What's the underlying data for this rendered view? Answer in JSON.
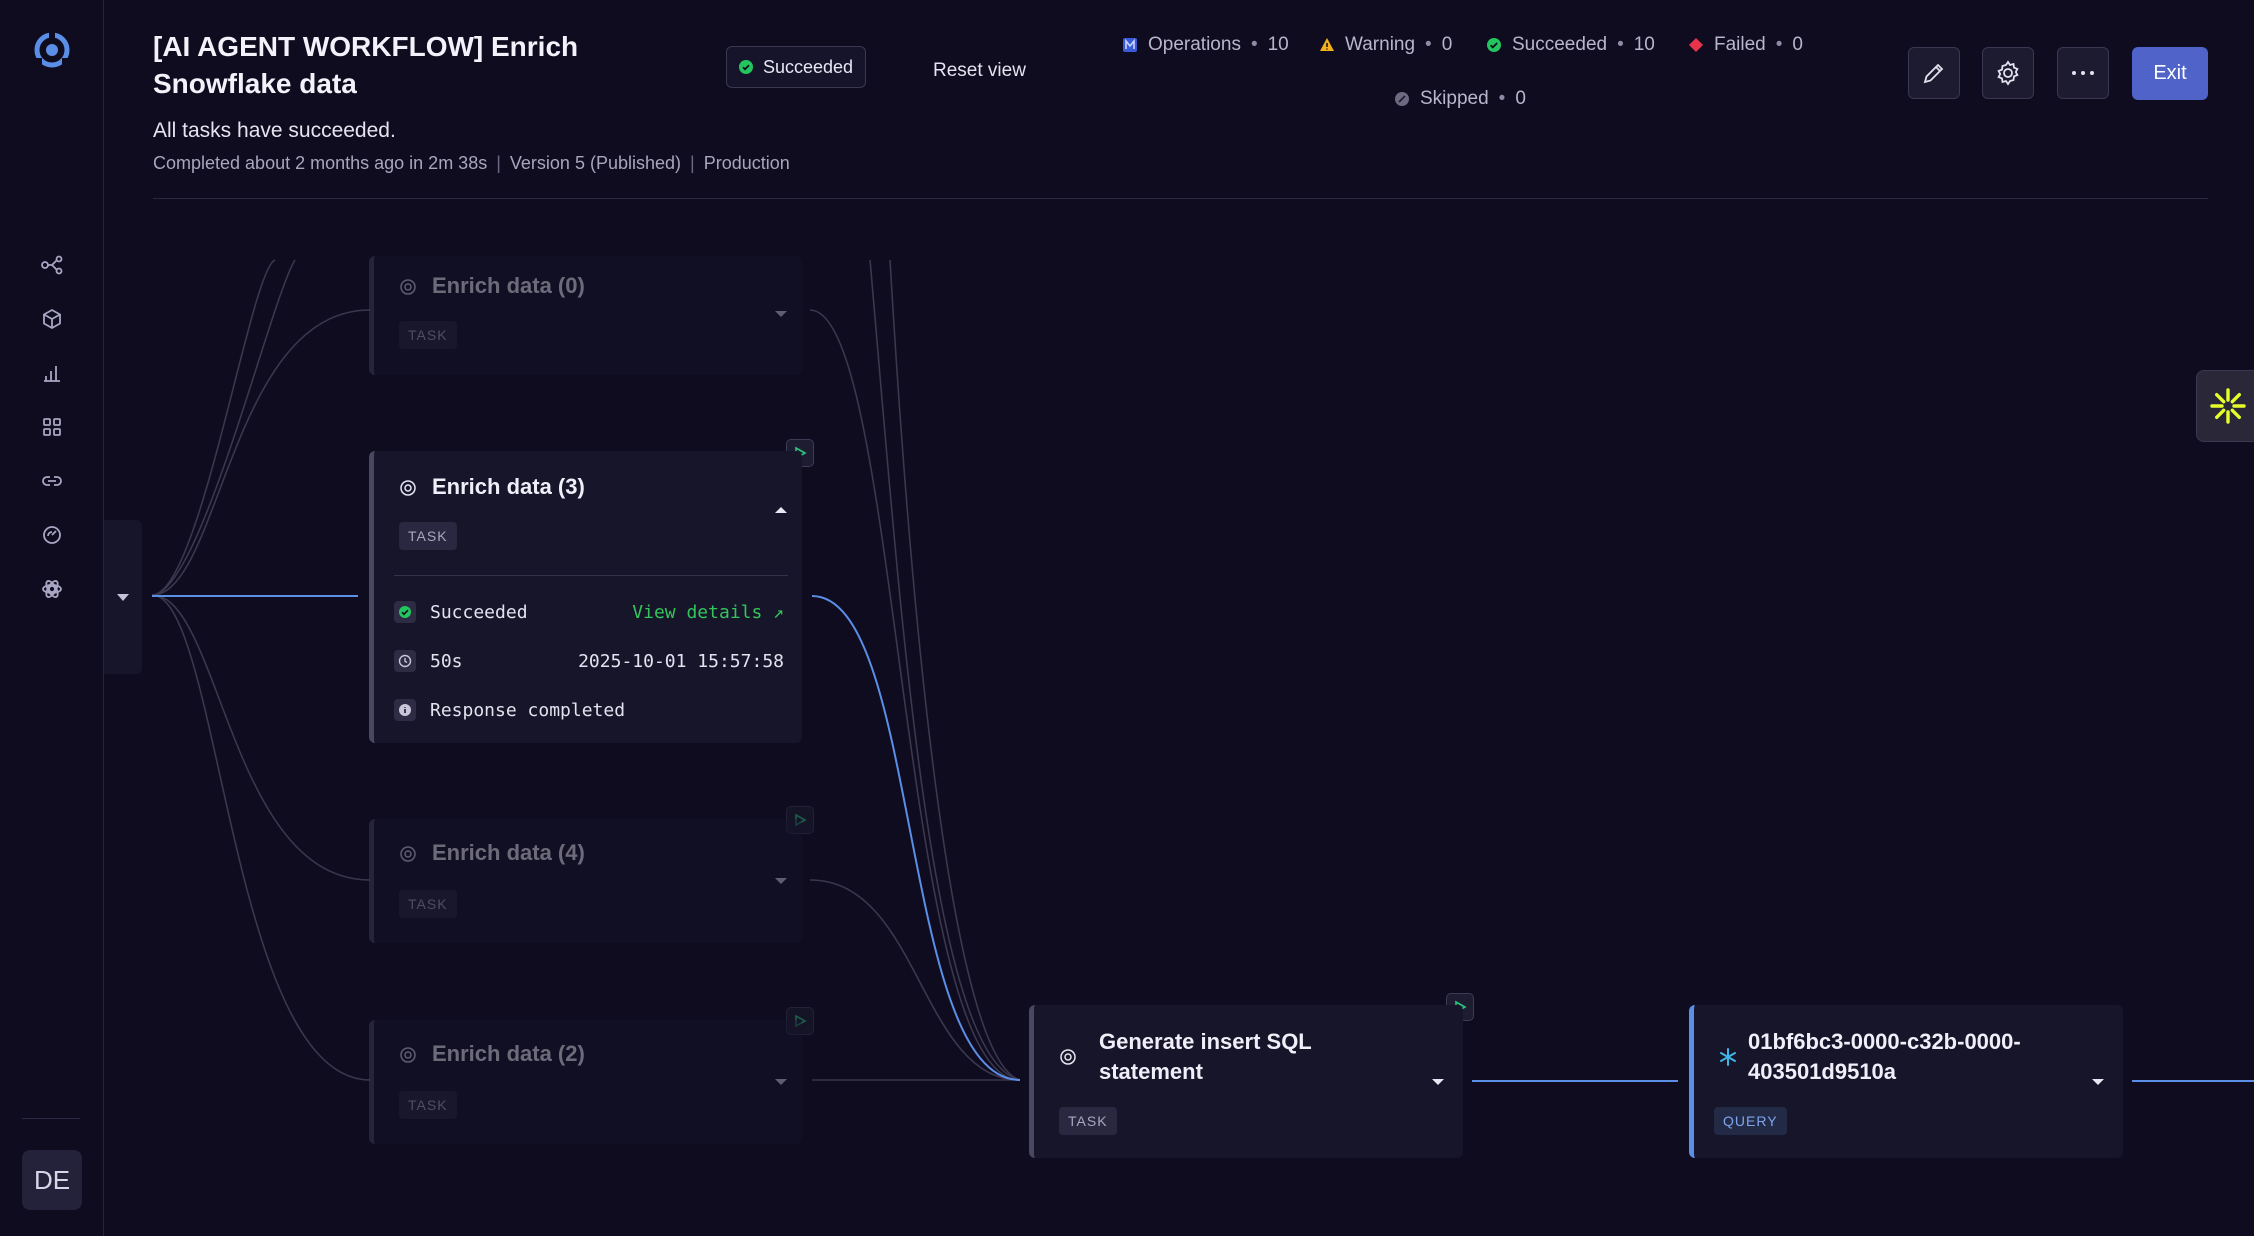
{
  "header": {
    "title": "[AI AGENT WORKFLOW] Enrich Snowflake data",
    "status_label": "Succeeded",
    "reset_view_label": "Reset view",
    "subtitle": "All tasks have succeeded.",
    "meta_completed": "Completed about 2 months ago in 2m 38s",
    "meta_version": "Version 5 (Published)",
    "meta_env": "Production",
    "exit_label": "Exit"
  },
  "stats": {
    "operations": {
      "label": "Operations",
      "count": "10"
    },
    "warning": {
      "label": "Warning",
      "count": "0"
    },
    "succeeded": {
      "label": "Succeeded",
      "count": "10"
    },
    "failed": {
      "label": "Failed",
      "count": "0"
    },
    "skipped": {
      "label": "Skipped",
      "count": "0"
    }
  },
  "user": {
    "initials": "DE"
  },
  "sidebar": {
    "items": [
      "workflows",
      "datasets",
      "analytics",
      "apps",
      "connections",
      "explore",
      "ai"
    ]
  },
  "nodes": {
    "enrich0": {
      "title": "Enrich data (0)",
      "tag": "TASK"
    },
    "enrich3": {
      "title": "Enrich data (3)",
      "tag": "TASK",
      "status": "Succeeded",
      "view_details": "View details ↗",
      "duration": "50s",
      "timestamp": "2025-10-01 15:57:58",
      "response": "Response completed"
    },
    "enrich4": {
      "title": "Enrich data (4)",
      "tag": "TASK"
    },
    "enrich2": {
      "title": "Enrich data (2)",
      "tag": "TASK"
    },
    "generate_sql": {
      "title": "Generate insert SQL statement",
      "tag": "TASK"
    },
    "query": {
      "title": "01bf6bc3-0000-c32b-0000-403501d9510a",
      "tag": "QUERY"
    }
  },
  "colors": {
    "background": "#0e0c1e",
    "accent": "#4f63c9",
    "success": "#22c55e",
    "warning": "#f2b01e",
    "failed": "#e8344a",
    "edge_active": "#5b8ee6"
  }
}
